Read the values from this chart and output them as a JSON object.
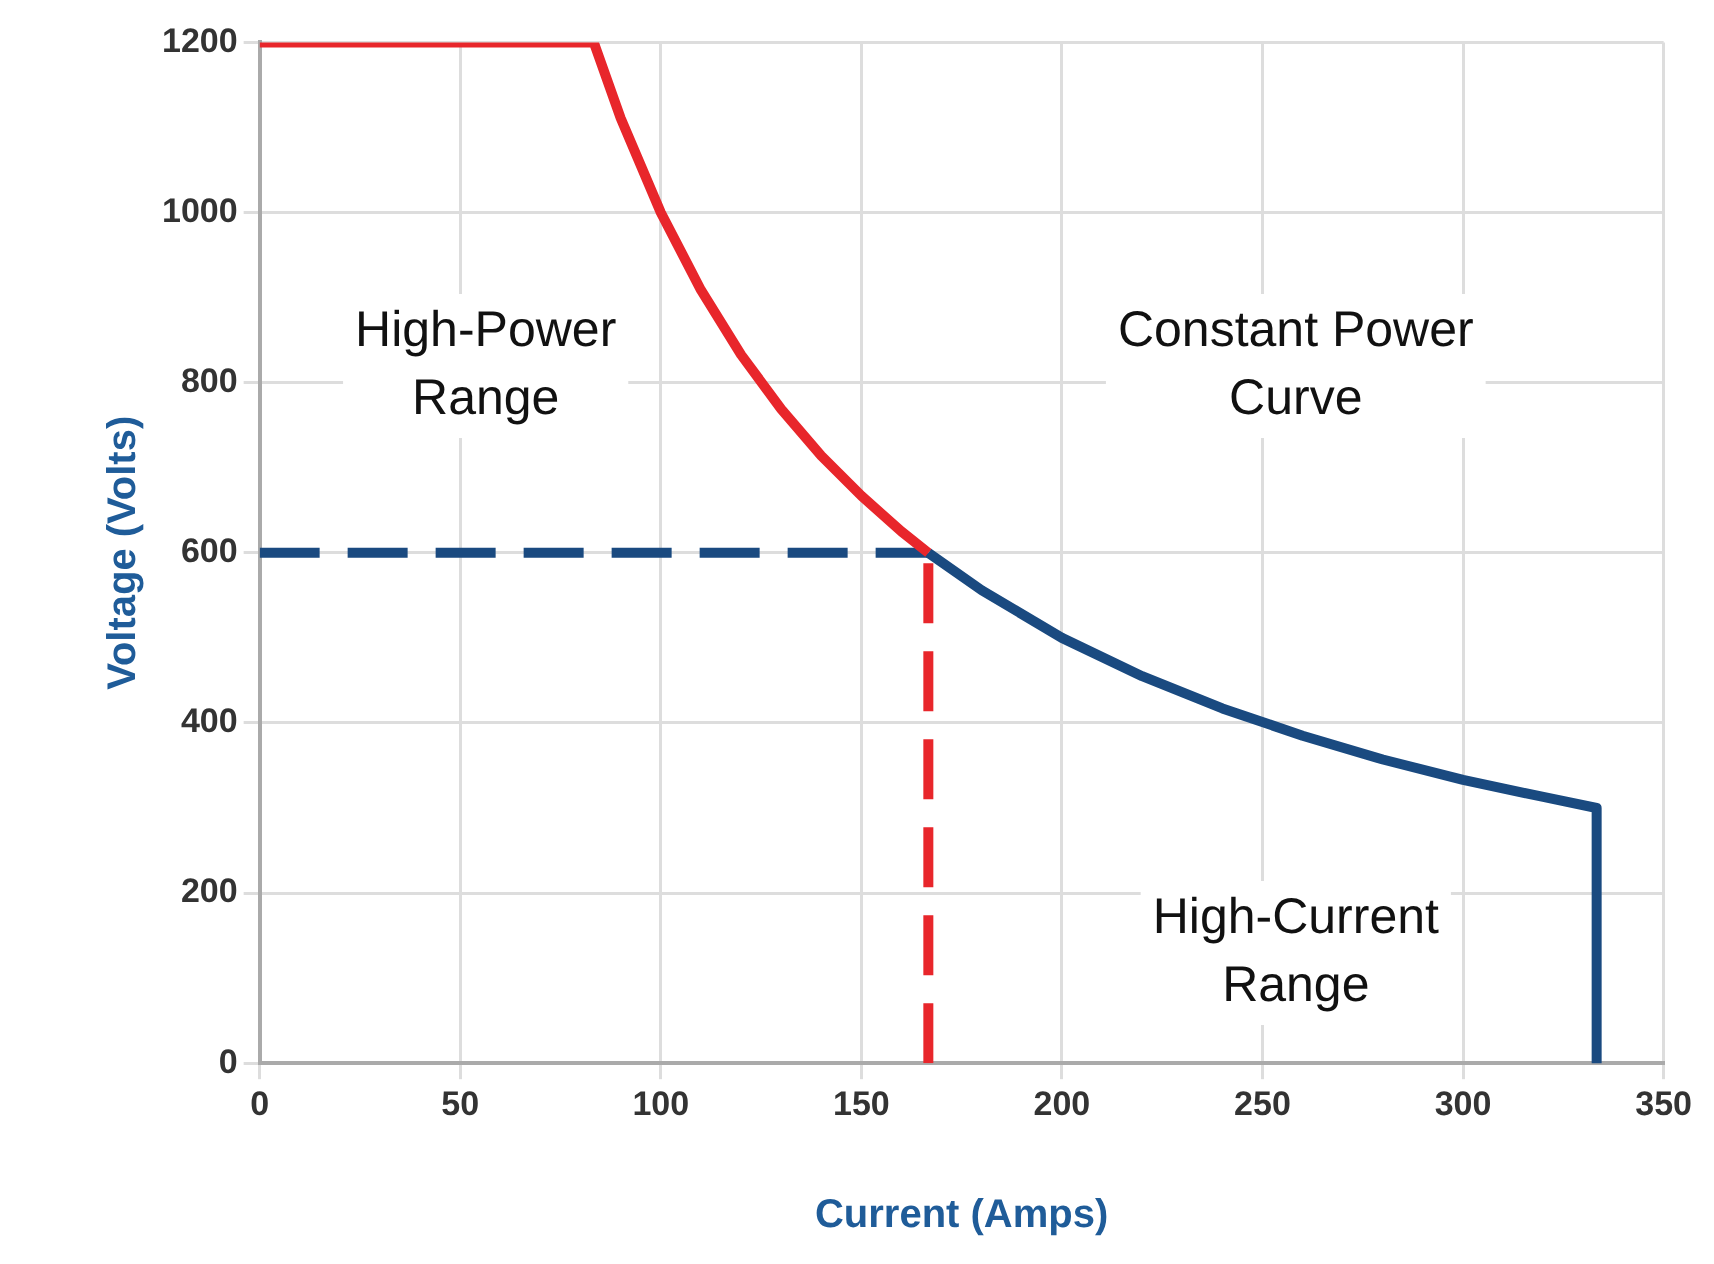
{
  "chart_data": {
    "type": "line",
    "xlabel": "Current (Amps)",
    "ylabel": "Voltage (Volts)",
    "xlim": [
      0,
      350
    ],
    "xticks": [
      0,
      50,
      100,
      150,
      200,
      250,
      300,
      350
    ],
    "ylim": [
      0,
      1200
    ],
    "yticks": [
      0,
      200,
      400,
      600,
      800,
      1000,
      1200
    ],
    "grid": true,
    "legend": false,
    "marker": "none",
    "series": [
      {
        "type": "line",
        "color": "#e8262b",
        "x": [
          0,
          83.3,
          90,
          100,
          110,
          120,
          130,
          140,
          150,
          160,
          166.7
        ],
        "values": [
          1200,
          1200,
          1111,
          1000,
          909,
          833,
          769,
          714,
          667,
          625,
          600
        ]
      },
      {
        "type": "line",
        "color": "#1a4a80",
        "x": [
          166.7,
          180,
          200,
          220,
          240,
          260,
          280,
          300,
          320,
          333.3,
          333.3
        ],
        "values": [
          600,
          556,
          500,
          455,
          417,
          385,
          357,
          333,
          313,
          300,
          0
        ]
      },
      {
        "type": "line",
        "color": "#1a4a80",
        "line_style": "dashed",
        "x": [
          0,
          166.7
        ],
        "values": [
          600,
          600
        ]
      },
      {
        "type": "line",
        "color": "#e8262b",
        "line_style": "dashed",
        "x": [
          166.7,
          166.7
        ],
        "values": [
          0,
          600
        ]
      }
    ],
    "annotations": [
      "High-Power\nRange",
      "Constant Power\nCurve",
      "High-Current\nRange"
    ]
  }
}
